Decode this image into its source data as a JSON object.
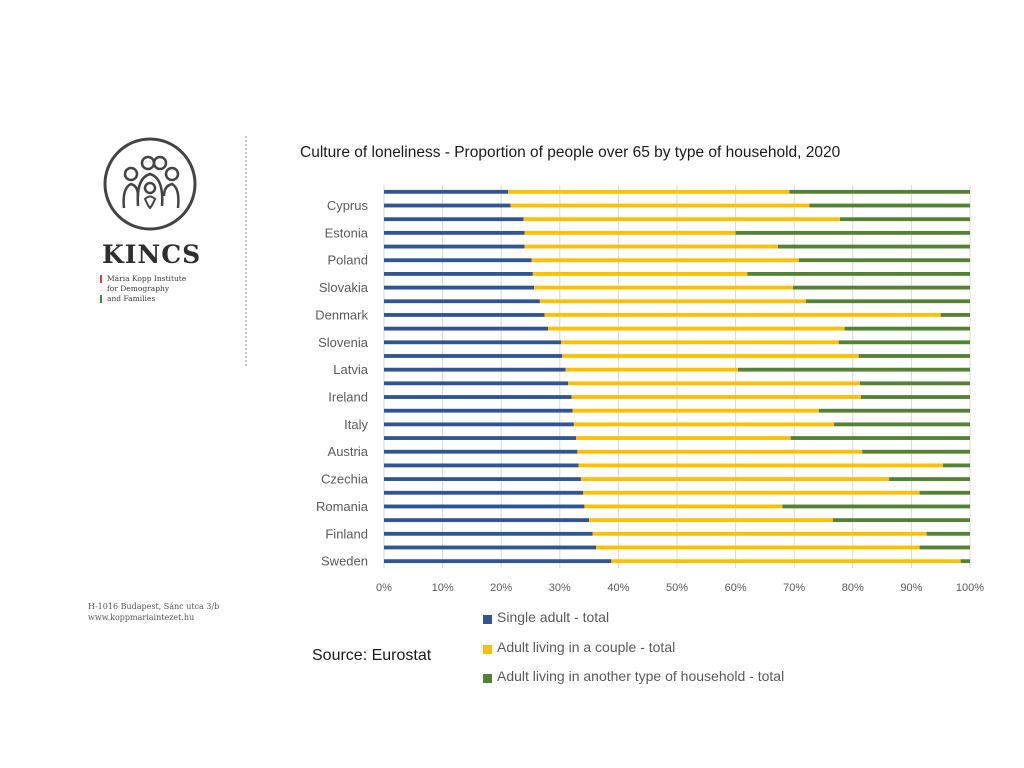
{
  "branding": {
    "name": "KINCS",
    "lines": [
      "Mária Kopp Institute",
      "for Demography",
      "and Families"
    ],
    "line_colors": [
      "#d0455a",
      "#ffffff",
      "#3a8a4a"
    ],
    "address": [
      "H-1016 Budapest, Sánc utca 3/b",
      "www.koppmariaintezet.hu"
    ],
    "logo_icon": "family-circle-logo"
  },
  "source": "Source: Eurostat",
  "chart_data": {
    "type": "bar",
    "orientation": "horizontal",
    "stacked": true,
    "title": "Culture of loneliness - Proportion of people over 65 by type of household, 2020",
    "xlim": [
      0,
      100
    ],
    "x_ticks": [
      "0%",
      "10%",
      "20%",
      "30%",
      "40%",
      "50%",
      "60%",
      "70%",
      "80%",
      "90%",
      "100%"
    ],
    "grid": true,
    "legend_position": "bottom",
    "categories": [
      "",
      "Cyprus",
      "",
      "Estonia",
      "",
      "Poland",
      "",
      "Slovakia",
      "",
      "Denmark",
      "",
      "Slovenia",
      "",
      "Latvia",
      "",
      "Ireland",
      "",
      "Italy",
      "",
      "Austria",
      "",
      "Czechia",
      "",
      "Romania",
      "",
      "Finland",
      "",
      "Sweden"
    ],
    "series": [
      {
        "name": "Single adult - total",
        "color": "#2f5597",
        "values": [
          21.2,
          21.6,
          23.8,
          24.0,
          24.0,
          25.2,
          25.4,
          25.6,
          26.6,
          27.4,
          28.0,
          30.2,
          30.4,
          31.0,
          31.4,
          32.0,
          32.2,
          32.4,
          32.8,
          33.0,
          33.2,
          33.6,
          34.0,
          34.2,
          35.0,
          35.6,
          36.2,
          38.8
        ]
      },
      {
        "name": "Adult living in a couple - total",
        "color": "#ffc000",
        "values": [
          48.0,
          51.0,
          54.0,
          36.0,
          43.2,
          45.6,
          36.6,
          44.2,
          45.4,
          67.6,
          50.6,
          47.4,
          50.6,
          29.4,
          49.8,
          49.4,
          42.0,
          44.4,
          36.6,
          48.6,
          62.2,
          52.6,
          57.4,
          33.8,
          41.6,
          57.0,
          55.2,
          59.6
        ]
      },
      {
        "name": "Adult living in another type of household - total",
        "color": "#548235",
        "values": [
          30.8,
          27.4,
          22.2,
          40.0,
          32.8,
          29.2,
          38.0,
          30.2,
          28.0,
          5.0,
          21.4,
          22.4,
          19.0,
          39.6,
          18.8,
          18.6,
          25.8,
          23.2,
          30.6,
          18.4,
          4.6,
          13.8,
          8.6,
          32.0,
          23.4,
          7.4,
          8.6,
          1.6
        ]
      }
    ]
  }
}
